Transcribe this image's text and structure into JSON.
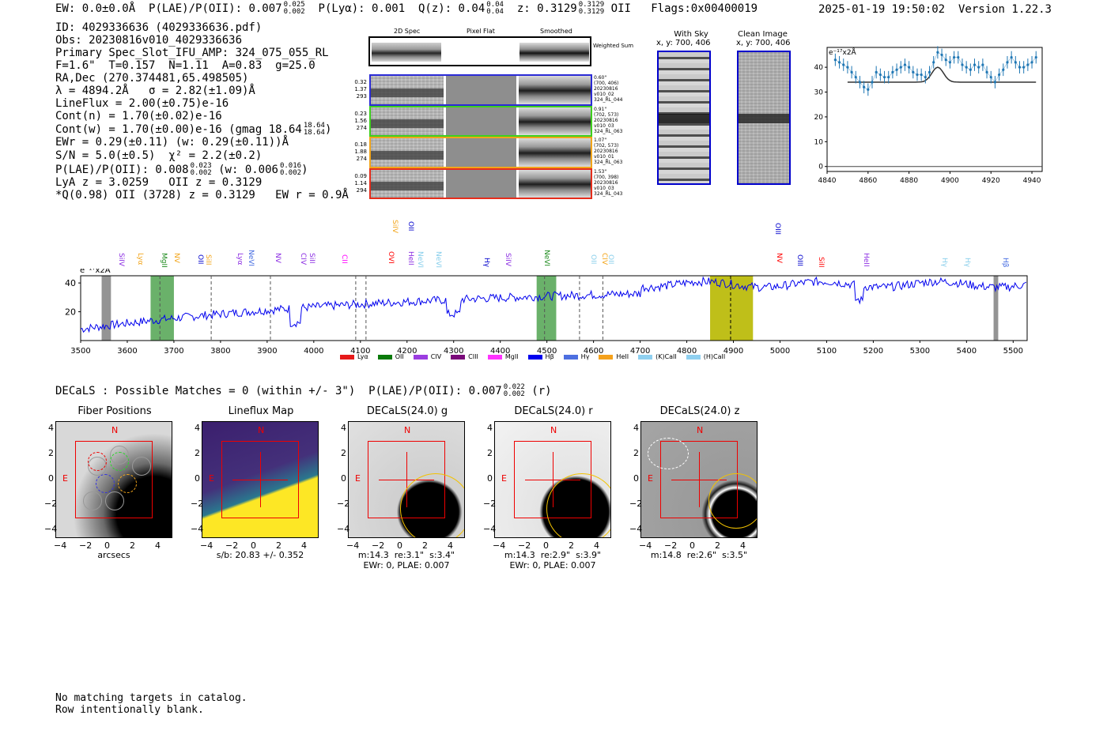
{
  "header": {
    "ew": "EW: 0.0±0.0Å",
    "plae_label": "P(LAE)/P(OII): 0.007",
    "plae_up": "0.025",
    "plae_lo": "0.002",
    "plya": "P(Lyα): 0.001",
    "q_label": "Q(z): 0.04",
    "q_up": "0.04",
    "q_lo": "0.04",
    "z_label": "z: 0.3129",
    "z_up": "0.3129",
    "z_lo": "0.3129",
    "z_line": "OII",
    "flags": "Flags:0x00400019",
    "datetime": "2025-01-19 19:50:02",
    "version": "Version 1.22.3"
  },
  "info": {
    "id": "ID: 4029336636 (4029336636.pdf)",
    "obs": "Obs: 20230816v010_4029336636",
    "primary": "Primary Spec_Slot_IFU_AMP: 324_075_055_RL",
    "params": "F=1.6\"  T=0.157  N=1.11  A=0.83  g=25.0",
    "radec": "RA,Dec (270.374481,65.498505)",
    "lambda": "λ = 4894.2Å   σ = 2.82(±1.09)Å",
    "lineflux": "LineFlux = 2.00(±0.75)e-16",
    "cont_n": "Cont(n) = 1.70(±0.02)e-16",
    "cont_w": "Cont(w) = 1.70(±0.00)e-16 (gmag 18.64",
    "gmag_up": "18.64",
    "gmag_lo": "18.64",
    "ewr": "EWr = 0.29(±0.11) (w: 0.29(±0.11))Å",
    "sn": "S/N = 5.0(±0.5)  χ² = 2.2(±0.2)",
    "plae2": "P(LAE)/P(OII): 0.008",
    "plae2_up": "0.023",
    "plae2_lo": "0.002",
    "plae2_w": "(w: 0.006",
    "plae2_w_up": "0.016",
    "plae2_w_lo": "0.002",
    "lya_z": "LyA z = 3.0259   OII z = 0.3129",
    "q_line": "*Q(0.98) OII (3728) z = 0.3129   EW r = 0.9Å"
  },
  "spec2d": {
    "col_titles": [
      "2D Spec",
      "Pixel Flat",
      "Smoothed"
    ],
    "weighted_sum": "Weighted Sum",
    "rows": [
      {
        "vals": [
          "0.32",
          "1.37",
          "293"
        ],
        "meta": [
          "0.60\"",
          "(700, 406)",
          "20230816",
          "v010_02",
          "324_RL_044"
        ],
        "color": "#2b2bd6"
      },
      {
        "vals": [
          "0.23",
          "1.56",
          "274"
        ],
        "meta": [
          "0.91\"",
          "(702, 573)",
          "20230816",
          "v010_03",
          "324_RL_063"
        ],
        "color": "#3ecf1e"
      },
      {
        "vals": [
          "0.18",
          "1.88",
          "274"
        ],
        "meta": [
          "1.07\"",
          "(702, 573)",
          "20230816",
          "v010_01",
          "324_RL_063"
        ],
        "color": "#f2a51a"
      },
      {
        "vals": [
          "0.09",
          "1.14",
          "294"
        ],
        "meta": [
          "1.53\"",
          "(700, 398)",
          "20230816",
          "v010_03",
          "324_RL_043"
        ],
        "color": "#e52d1c"
      }
    ]
  },
  "sky": {
    "with_sky_title": "With Sky",
    "with_sky_coord": "x, y: 700, 406",
    "clean_title": "Clean Image",
    "clean_coord": "x, y: 700, 406"
  },
  "zoom_plot": {
    "ylabel": "e⁻¹⁷x2Å",
    "yticks": [
      "40",
      "30",
      "20",
      "10",
      "0"
    ],
    "xticks": [
      "4840",
      "4860",
      "4880",
      "4900",
      "4920",
      "4940"
    ]
  },
  "full_spectrum": {
    "ylabel": "e⁻¹⁷x2Å",
    "yticks": [
      "40",
      "20"
    ],
    "xticks": [
      "3500",
      "3600",
      "3700",
      "3800",
      "3900",
      "4000",
      "4100",
      "4200",
      "4300",
      "4400",
      "4500",
      "4600",
      "4700",
      "4800",
      "4900",
      "5000",
      "5100",
      "5200",
      "5300",
      "5400",
      "5500"
    ],
    "line_labels": [
      {
        "text": "SiIV",
        "color": "#8a2be2"
      },
      {
        "text": "Lyα",
        "color": "#f2a51a"
      },
      {
        "text": "MgII",
        "color": "#1b8a1b"
      },
      {
        "text": "NV",
        "color": "#f2a51a"
      },
      {
        "text": "OII",
        "color": "#0000cc"
      },
      {
        "text": "SiII",
        "color": "#f2a51a"
      },
      {
        "text": "Lyα",
        "color": "#8a2be2"
      },
      {
        "text": "NeVI",
        "color": "#4169e1"
      },
      {
        "text": "NV",
        "color": "#8a2be2"
      },
      {
        "text": "CIV",
        "color": "#8a2be2"
      },
      {
        "text": "SiII",
        "color": "#8a2be2"
      },
      {
        "text": "CII",
        "color": "#ff00ff"
      },
      {
        "text": "SiIV",
        "color": "#f2a51a"
      },
      {
        "text": "OVI",
        "color": "#ff0000"
      },
      {
        "text": "OII",
        "color": "#0000cc"
      },
      {
        "text": "HeII",
        "color": "#8a2be2"
      },
      {
        "text": "NeVI",
        "color": "#87ceeb"
      },
      {
        "text": "NeVI",
        "color": "#87ceeb"
      },
      {
        "text": "Hγ",
        "color": "#0000cc"
      },
      {
        "text": "SiIV",
        "color": "#8a2be2"
      },
      {
        "text": "NeVI",
        "color": "#1b8a1b"
      },
      {
        "text": "OII",
        "color": "#87ceeb"
      },
      {
        "text": "CIV",
        "color": "#f2a51a"
      },
      {
        "text": "OII",
        "color": "#87ceeb"
      },
      {
        "text": "OIII",
        "color": "#0000cc"
      },
      {
        "text": "NV",
        "color": "#ff0000"
      },
      {
        "text": "OIII",
        "color": "#0000cc"
      },
      {
        "text": "SiII",
        "color": "#ff0000"
      },
      {
        "text": "HeII",
        "color": "#8a2be2"
      },
      {
        "text": "Hγ",
        "color": "#87ceeb"
      },
      {
        "text": "Hγ",
        "color": "#87ceeb"
      },
      {
        "text": "Hβ",
        "color": "#4169e1"
      }
    ],
    "legend": [
      {
        "label": "Lyα",
        "color": "#e61919"
      },
      {
        "label": "OII",
        "color": "#0a7a0a"
      },
      {
        "label": "CIV",
        "color": "#9b3de0"
      },
      {
        "label": "CIII",
        "color": "#7a0a7a"
      },
      {
        "label": "MgII",
        "color": "#ff33ff"
      },
      {
        "label": "Hβ",
        "color": "#0000ee"
      },
      {
        "label": "Hγ",
        "color": "#4d6fe0"
      },
      {
        "label": "HeII",
        "color": "#f5a11b"
      },
      {
        "label": "(K)CaII",
        "color": "#8fd0f0"
      },
      {
        "label": "(H)CaII",
        "color": "#8fd0f0"
      }
    ]
  },
  "decals": {
    "summary": "DECaLS : Possible Matches = 0 (within +/- 3\")  P(LAE)/P(OII): 0.007",
    "summary_up": "0.022",
    "summary_lo": "0.002",
    "summary_band": "(r)",
    "axis_ticks_y": [
      "4",
      "2",
      "0",
      "−2",
      "−4"
    ],
    "axis_ticks_x": [
      "−4",
      "−2",
      "0",
      "2",
      "4"
    ],
    "compass_n": "N",
    "compass_e": "E",
    "panels": [
      {
        "title": "Fiber Positions",
        "foot": "arcsecs"
      },
      {
        "title": "Lineflux Map",
        "foot": "s/b: 20.83 +/- 0.352"
      },
      {
        "title": "DECaLS(24.0) g",
        "foot": "m:14.3  re:3.1\"  s:3.4\"\nEWr: 0, PLAE: 0.007"
      },
      {
        "title": "DECaLS(24.0) r",
        "foot": "m:14.3  re:2.9\"  s:3.9\"\nEWr: 0, PLAE: 0.007"
      },
      {
        "title": "DECaLS(24.0) z",
        "foot": "m:14.8  re:2.6\"  s:3.5\""
      }
    ]
  },
  "catalog": {
    "line1": "No matching targets in catalog.",
    "line2": "Row intentionally blank."
  },
  "zoom_data": {
    "x": [
      4844,
      4846,
      4848,
      4850,
      4852,
      4854,
      4856,
      4858,
      4860,
      4862,
      4864,
      4866,
      4868,
      4870,
      4872,
      4874,
      4876,
      4878,
      4880,
      4882,
      4884,
      4886,
      4888,
      4890,
      4892,
      4894,
      4896,
      4898,
      4900,
      4902,
      4904,
      4906,
      4908,
      4910,
      4912,
      4914,
      4916,
      4918,
      4920,
      4922,
      4924,
      4926,
      4928,
      4930,
      4932,
      4934,
      4936,
      4938,
      4940,
      4942
    ],
    "y": [
      43,
      42,
      41,
      40,
      38,
      36,
      34,
      32,
      31,
      34,
      38,
      37,
      36,
      36,
      38,
      39,
      40,
      41,
      40,
      38,
      37,
      37,
      36,
      38,
      42,
      46,
      45,
      43,
      42,
      44,
      44,
      41,
      40,
      39,
      41,
      40,
      41,
      38,
      36,
      34,
      37,
      39,
      42,
      44,
      42,
      40,
      40,
      41,
      42,
      44
    ],
    "fit_y": 34
  }
}
